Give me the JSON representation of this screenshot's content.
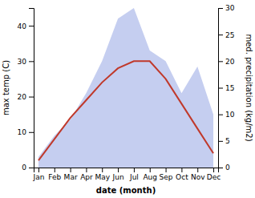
{
  "chart_data": {
    "type": "line",
    "xlabel": "date (month)",
    "ylabel": "max temp (C)",
    "y2label": "med. precipitation (kg/m2)",
    "categories": [
      "Jan",
      "Feb",
      "Mar",
      "Apr",
      "May",
      "Jun",
      "Jul",
      "Aug",
      "Sep",
      "Oct",
      "Nov",
      "Dec"
    ],
    "series": [
      {
        "type": "area",
        "axis": "y2",
        "color": "#c5cef0",
        "values": [
          2,
          6,
          9,
          14,
          20,
          28,
          30,
          22,
          20,
          14,
          19,
          10
        ]
      },
      {
        "type": "line",
        "color": "#c0392b",
        "values": [
          2,
          8,
          14,
          19,
          24,
          28,
          30,
          30,
          25,
          18,
          11,
          4
        ]
      }
    ],
    "ylim": [
      0,
      45
    ],
    "yticks": [
      0,
      10,
      20,
      30,
      40
    ],
    "y2lim": [
      0,
      30
    ],
    "y2ticks": [
      0,
      5,
      10,
      15,
      20,
      25,
      30
    ],
    "grid": false
  }
}
